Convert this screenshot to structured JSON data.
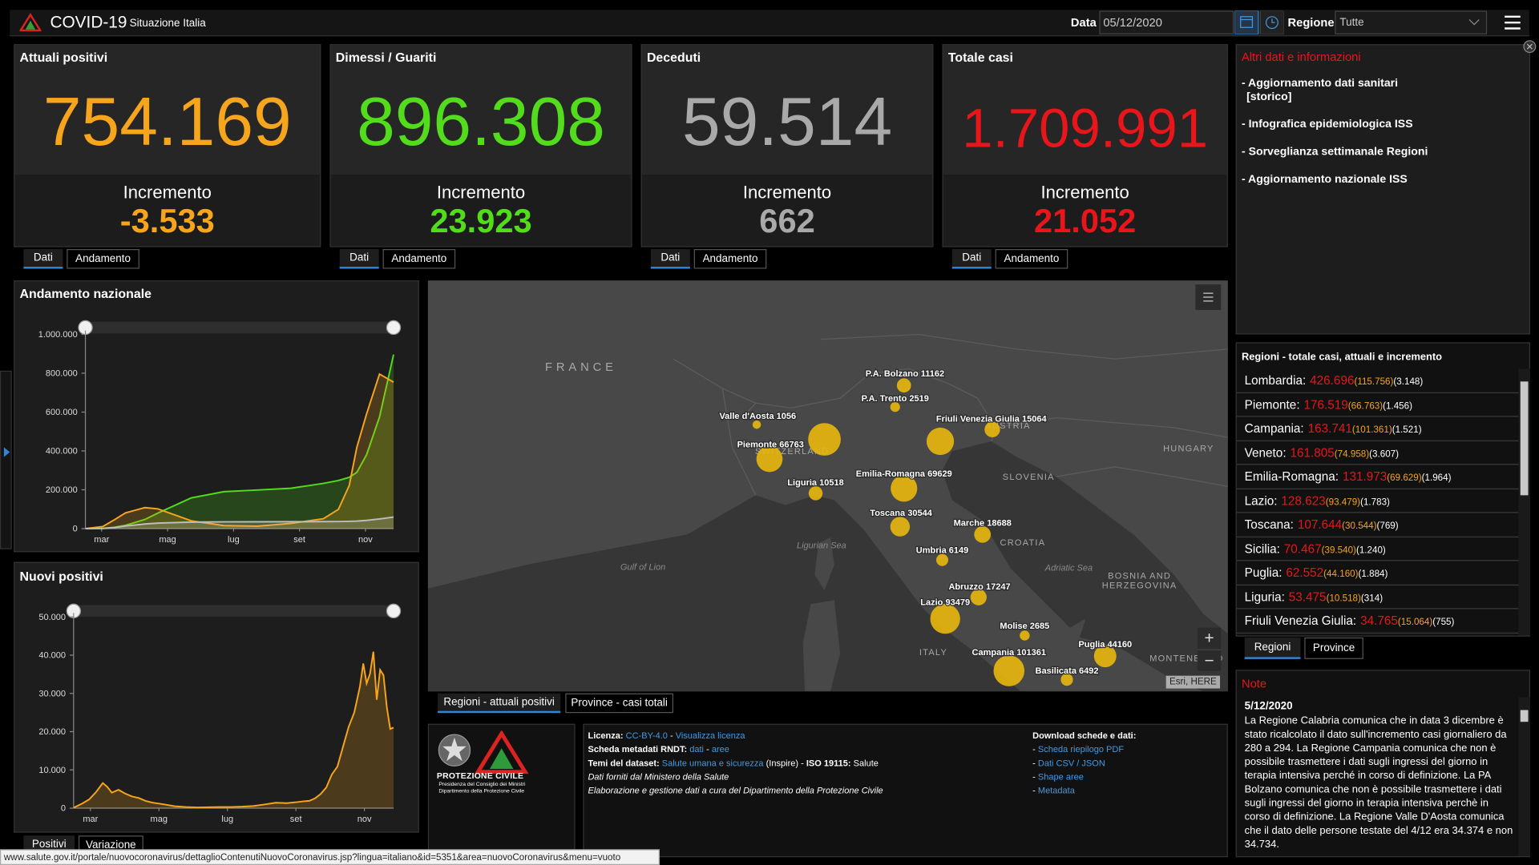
{
  "header": {
    "title": "COVID-19",
    "subtitle": "Situazione Italia",
    "date_label": "Data",
    "date": "05/12/2020",
    "region_label": "Regione",
    "region": "Tutte"
  },
  "cards": [
    {
      "title": "Attuali positivi",
      "value": "754.169",
      "increment_label": "Incremento",
      "increment": "-3.533",
      "color": "#f7a51c",
      "tabs": [
        "Dati",
        "Andamento"
      ]
    },
    {
      "title": "Dimessi / Guariti",
      "value": "896.308",
      "increment_label": "Incremento",
      "increment": "23.923",
      "color": "#52dc1c",
      "tabs": [
        "Dati",
        "Andamento"
      ]
    },
    {
      "title": "Deceduti",
      "value": "59.514",
      "increment_label": "Incremento",
      "increment": "662",
      "color": "#a9a9a9",
      "tabs": [
        "Dati",
        "Andamento"
      ]
    },
    {
      "title": "Totale casi",
      "value": "1.709.991",
      "increment_label": "Incremento",
      "increment": "21.052",
      "color": "#e8161b",
      "tabs": [
        "Dati",
        "Andamento"
      ]
    }
  ],
  "info": {
    "title": "Altri dati e informazioni",
    "links": [
      [
        "- Aggiornamento dati sanitari",
        "[storico]"
      ],
      [
        "- Infografica epidemiologica ISS"
      ],
      [
        "- Sorveglianza settimanale Regioni"
      ],
      [
        "- Aggiornamento nazionale ISS"
      ]
    ]
  },
  "regions": {
    "title": "Regioni - totale casi, attuali e incremento",
    "rows": [
      {
        "name": "Lombardia:",
        "total": "426.696",
        "current": "(115.756)",
        "increment": "(3.148)"
      },
      {
        "name": "Piemonte:",
        "total": "176.519",
        "current": "(66.763)",
        "increment": "(1.456)"
      },
      {
        "name": "Campania:",
        "total": "163.741",
        "current": "(101.361)",
        "increment": "(1.521)"
      },
      {
        "name": "Veneto:",
        "total": "161.805",
        "current": "(74.958)",
        "increment": "(3.607)"
      },
      {
        "name": "Emilia-Romagna:",
        "total": "131.973",
        "current": "(69.629)",
        "increment": "(1.964)"
      },
      {
        "name": "Lazio:",
        "total": "128.623",
        "current": "(93.479)",
        "increment": "(1.783)"
      },
      {
        "name": "Toscana:",
        "total": "107.644",
        "current": "(30.544)",
        "increment": "(769)"
      },
      {
        "name": "Sicilia:",
        "total": "70.467",
        "current": "(39.540)",
        "increment": "(1.240)"
      },
      {
        "name": "Puglia:",
        "total": "62.552",
        "current": "(44.160)",
        "increment": "(1.884)"
      },
      {
        "name": "Liguria:",
        "total": "53.475",
        "current": "(10.518)",
        "increment": "(314)"
      },
      {
        "name": "Friuli Venezia Giulia:",
        "total": "34.765",
        "current": "(15.064)",
        "increment": "(755)"
      }
    ],
    "tabs": [
      "Regioni",
      "Province"
    ]
  },
  "notes": {
    "title": "Note",
    "date": "5/12/2020",
    "text": "La Regione Calabria comunica che in data 3 dicembre è stato ricalcolato il dato sull'incremento casi giornaliero da 280 a 294. La Regione Campania comunica che non è possibile trasmettere i dati sugli ingressi del giorno in terapia intensiva perché in corso di definizione. La PA Bolzano comunica che non è possibile trasmettere i dati sugli ingressi del giorno in terapia intensiva perchè in corso di definizione. La Regione Valle D'Aosta comunica che il dato delle persone testate del 4/12 era 34.374 e non 34.734."
  },
  "map": {
    "countries": [
      "FRANCE",
      "SWITZERLAND",
      "AUSTRIA",
      "HUNGARY",
      "SLOVENIA",
      "CROATIA",
      "BOSNIA AND",
      "HERZEGOVINA",
      "ITALY",
      "MONTENEGRO"
    ],
    "seas": [
      "Ligurian Sea",
      "Gulf of Lion",
      "Adriatic Sea"
    ],
    "markers": [
      {
        "label": "Valle d'Aosta 1056",
        "value": 1056
      },
      {
        "label": "Piemonte 66763",
        "value": 66763
      },
      {
        "label": null,
        "value": 115756
      },
      {
        "label": "P.A. Bolzano 11162",
        "value": 11162
      },
      {
        "label": "P.A. Trento 2519",
        "value": 2519
      },
      {
        "label": "Friuli Venezia Giulia 15064",
        "value": 15064
      },
      {
        "label": null,
        "value": 74958
      },
      {
        "label": "Liguria 10518",
        "value": 10518
      },
      {
        "label": "Emilia-Romagna 69629",
        "value": 69629
      },
      {
        "label": "Toscana 30544",
        "value": 30544
      },
      {
        "label": "Marche 18688",
        "value": 18688
      },
      {
        "label": "Umbria 6149",
        "value": 6149
      },
      {
        "label": "Abruzzo 17247",
        "value": 17247
      },
      {
        "label": "Lazio 93479",
        "value": 93479
      },
      {
        "label": "Molise 2685",
        "value": 2685
      },
      {
        "label": "Puglia 44160",
        "value": 44160
      },
      {
        "label": "Campania 101361",
        "value": 101361
      },
      {
        "label": "Basilicata 6492",
        "value": 6492
      }
    ],
    "marker_color": "#e8b70c",
    "attribution": "Esri, HERE",
    "zoom_in": "+",
    "zoom_out": "−",
    "tabs": [
      "Regioni - attuali positivi",
      "Province - casi totali"
    ]
  },
  "chart_data": [
    {
      "type": "line",
      "title": "Andamento nazionale",
      "x": [
        0,
        16,
        26,
        37,
        55,
        67,
        98,
        128,
        159,
        190,
        220,
        234,
        244,
        251,
        260,
        272,
        285
      ],
      "xlim": [
        0,
        285
      ],
      "xticks": [
        {
          "value": 15,
          "label": "mar"
        },
        {
          "value": 76,
          "label": "mag"
        },
        {
          "value": 137,
          "label": "lug"
        },
        {
          "value": 198,
          "label": "set"
        },
        {
          "value": 259,
          "label": "nov"
        }
      ],
      "ylim": [
        0,
        1000000
      ],
      "yticks": [
        0,
        {
          "value": 200000,
          "label": "200.000"
        },
        {
          "value": 400000,
          "label": "400.000"
        },
        {
          "value": 600000,
          "label": "600.000"
        },
        {
          "value": 800000,
          "label": "800.000"
        },
        {
          "value": 1000000,
          "label": "1.000.000"
        }
      ],
      "series": [
        {
          "color": "#52dc1c",
          "values": [
            1,
            1045,
            6072,
            16847,
            47055,
            79914,
            158355,
            190248,
            198756,
            207653,
            232681,
            247872,
            264117,
            289426,
            380000,
            575000,
            896308
          ]
        },
        {
          "color": "#f7a51c",
          "values": [
            221,
            10590,
            42681,
            80572,
            108257,
            101551,
            39893,
            15563,
            12457,
            26754,
            50630,
            99266,
            222241,
            418142,
            590110,
            795771,
            754169
          ]
        },
        {
          "color": "#bdbdbd",
          "values": [
            7,
            827,
            4825,
            13155,
            23660,
            28236,
            33475,
            34767,
            35154,
            35491,
            35918,
            36427,
            37338,
            38618,
            42330,
            49823,
            59514
          ]
        }
      ]
    },
    {
      "type": "line",
      "title": "Nuovi positivi",
      "x": [
        0,
        8,
        14,
        20,
        26,
        30,
        34,
        40,
        46,
        52,
        58,
        64,
        70,
        80,
        90,
        100,
        110,
        120,
        130,
        140,
        150,
        160,
        170,
        180,
        190,
        200,
        205,
        210,
        215,
        220,
        225,
        230,
        235,
        240,
        245,
        250,
        255,
        258,
        261,
        264,
        267,
        270,
        273,
        276,
        279,
        282,
        285
      ],
      "xlim": [
        0,
        285
      ],
      "xticks": [
        {
          "value": 15,
          "label": "mar"
        },
        {
          "value": 76,
          "label": "mag"
        },
        {
          "value": 137,
          "label": "lug"
        },
        {
          "value": 198,
          "label": "set"
        },
        {
          "value": 259,
          "label": "nov"
        }
      ],
      "ylim": [
        0,
        50000
      ],
      "yticks": [
        0,
        {
          "value": 10000,
          "label": "10.000"
        },
        {
          "value": 20000,
          "label": "20.000"
        },
        {
          "value": 30000,
          "label": "30.000"
        },
        {
          "value": 40000,
          "label": "40.000"
        },
        {
          "value": 50000,
          "label": "50.000"
        }
      ],
      "series": [
        {
          "color": "#f7a51c",
          "values": [
            93,
            1247,
            2313,
            4207,
            6557,
            5560,
            4050,
            4782,
            3786,
            3047,
            2646,
            1900,
            1444,
            1002,
            500,
            300,
            190,
            230,
            280,
            300,
            380,
            550,
            950,
            1400,
            1300,
            1600,
            1790,
            1900,
            2550,
            3678,
            5372,
            8804,
            10874,
            16079,
            21273,
            24991,
            31758,
            37809,
            32616,
            35098,
            40902,
            28337,
            36176,
            34767,
            26323,
            20709,
            21052
          ]
        }
      ],
      "tabs": [
        "Positivi",
        "Variazione"
      ]
    }
  ],
  "footer": {
    "logo": [
      "PROTEZIONE CIVILE",
      "Presidenza del Consiglio dei Ministri",
      "Dipartimento della Protezione Civile"
    ],
    "license": [
      [
        {
          "text": "Licenza: ",
          "kind": "bold"
        },
        {
          "text": "CC-BY-4.0",
          "kind": "link"
        },
        {
          "text": " - ",
          "kind": "plain"
        },
        {
          "text": "Visualizza licenza",
          "kind": "link"
        }
      ],
      [
        {
          "text": "Scheda metadati RNDT: ",
          "kind": "bold"
        },
        {
          "text": "dati",
          "kind": "link"
        },
        {
          "text": " - ",
          "kind": "plain"
        },
        {
          "text": "aree",
          "kind": "link"
        }
      ],
      [
        {
          "text": "Temi del dataset: ",
          "kind": "bold"
        },
        {
          "text": "Salute umana e sicurezza",
          "kind": "link"
        },
        {
          "text": " (Inspire) - ",
          "kind": "plain"
        },
        {
          "text": "ISO 19115: ",
          "kind": "bold"
        },
        {
          "text": "Salute",
          "kind": "plain"
        }
      ],
      [
        {
          "text": "Dati forniti dal Ministero della Salute",
          "kind": "italic"
        }
      ],
      [
        {
          "text": "Elaborazione e gestione dati a cura del Dipartimento della Protezione Civile",
          "kind": "italic"
        }
      ]
    ],
    "download": [
      [
        {
          "text": "Download schede e dati:",
          "kind": "bold"
        }
      ],
      [
        {
          "text": "- ",
          "kind": "plain"
        },
        {
          "text": "Scheda riepilogo PDF",
          "kind": "link"
        }
      ],
      [
        {
          "text": "- ",
          "kind": "plain"
        },
        {
          "text": "Dati CSV / JSON",
          "kind": "link"
        }
      ],
      [
        {
          "text": "- ",
          "kind": "plain"
        },
        {
          "text": "Shape aree",
          "kind": "link"
        }
      ],
      [
        {
          "text": "- ",
          "kind": "plain"
        },
        {
          "text": "Metadata",
          "kind": "link"
        }
      ]
    ]
  },
  "status_url": "www.salute.gov.it/portale/nuovocoronavirus/dettaglioContenutiNuovoCoronavirus.jsp?lingua=italiano&id=5351&area=nuovoCoronavirus&menu=vuoto"
}
